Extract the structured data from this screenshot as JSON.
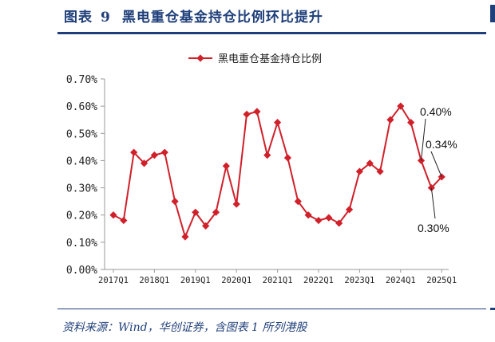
{
  "figure": {
    "label": "图表",
    "number": "9",
    "title": "黑电重仓基金持仓比例环比提升",
    "source": "资料来源：Wind，华创证券，含图表 1 所列港股"
  },
  "chart_data": {
    "type": "line",
    "title": "",
    "xlabel": "",
    "ylabel": "",
    "ylim": [
      0,
      0.7
    ],
    "y_ticks": [
      "0.00%",
      "0.10%",
      "0.20%",
      "0.30%",
      "0.40%",
      "0.50%",
      "0.60%",
      "0.70%"
    ],
    "x_tick_labels": [
      "2017Q1",
      "2018Q1",
      "2019Q1",
      "2020Q1",
      "2021Q1",
      "2022Q1",
      "2023Q1",
      "2024Q1",
      "2025Q1"
    ],
    "x": [
      "2017Q1",
      "2017Q2",
      "2017Q3",
      "2017Q4",
      "2018Q1",
      "2018Q2",
      "2018Q3",
      "2018Q4",
      "2019Q1",
      "2019Q2",
      "2019Q3",
      "2019Q4",
      "2020Q1",
      "2020Q2",
      "2020Q3",
      "2020Q4",
      "2021Q1",
      "2021Q2",
      "2021Q3",
      "2021Q4",
      "2022Q1",
      "2022Q2",
      "2022Q3",
      "2022Q4",
      "2023Q1",
      "2023Q2",
      "2023Q3",
      "2023Q4",
      "2024Q1",
      "2024Q2",
      "2024Q3",
      "2024Q4",
      "2025Q1"
    ],
    "series": [
      {
        "name": "黑电重仓基金持仓比例",
        "color": "#d0202a",
        "marker": "diamond",
        "values": [
          0.2,
          0.18,
          0.43,
          0.39,
          0.42,
          0.43,
          0.25,
          0.12,
          0.21,
          0.16,
          0.21,
          0.38,
          0.24,
          0.57,
          0.58,
          0.42,
          0.54,
          0.41,
          0.25,
          0.2,
          0.18,
          0.19,
          0.17,
          0.22,
          0.36,
          0.39,
          0.36,
          0.55,
          0.6,
          0.54,
          0.4,
          0.3,
          0.34
        ]
      }
    ],
    "annotations": [
      {
        "text": "0.40%",
        "at": "2024Q3"
      },
      {
        "text": "0.34%",
        "at": "2025Q1"
      },
      {
        "text": "0.30%",
        "at": "2024Q4"
      }
    ],
    "legend": "top-center",
    "grid": false
  }
}
